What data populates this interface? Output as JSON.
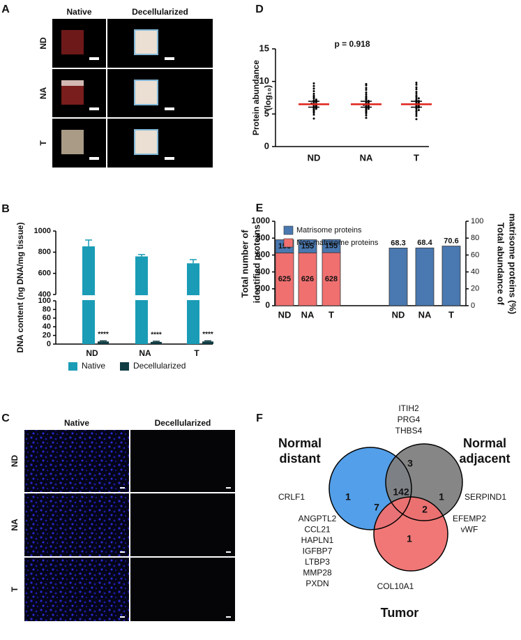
{
  "panel_labels": [
    "A",
    "B",
    "C",
    "D",
    "E",
    "F"
  ],
  "panel_a": {
    "columns": [
      "Native",
      "Decellularized"
    ],
    "rows": [
      "ND",
      "NA",
      "T"
    ]
  },
  "panel_c": {
    "columns": [
      "Native",
      "Decellularized"
    ],
    "rows": [
      "ND",
      "NA",
      "T"
    ]
  },
  "chart_data": [
    {
      "type": "broken_bar",
      "y_label": "DNA content (ng DNA/mg tissue)",
      "categories": [
        "ND",
        "NA",
        "T"
      ],
      "series": [
        {
          "name": "Native",
          "color": "#1a9cb6",
          "values": [
            855,
            760,
            695
          ],
          "errors": [
            60,
            18,
            35
          ]
        },
        {
          "name": "Decellularized",
          "color": "#103c44",
          "values": [
            6,
            5,
            6
          ],
          "errors": [
            1.5,
            1.5,
            1.5
          ]
        }
      ],
      "annotations": [
        "****",
        "****",
        "****"
      ],
      "ylim": [
        0,
        1000
      ],
      "ybreak": [
        100,
        400
      ],
      "yticks": [
        0,
        20,
        40,
        60,
        80,
        100,
        400,
        600,
        800,
        1000
      ],
      "legend": "bottom"
    },
    {
      "type": "dot_plot",
      "y_label_lines": [
        "Protein abundance",
        "(log₁₀)"
      ],
      "annotation": "p = 0.918",
      "categories": [
        "ND",
        "NA",
        "T"
      ],
      "color": "#000000",
      "mean_color": "#e0201b",
      "groups": [
        {
          "values": [
            4.3,
            4.9,
            5.2,
            5.4,
            5.6,
            5.7,
            5.8,
            5.9,
            6.0,
            6.1,
            6.2,
            6.3,
            6.4,
            6.5,
            6.5,
            6.6,
            6.7,
            6.8,
            6.9,
            7.0,
            7.1,
            7.2,
            7.4,
            7.6,
            7.8,
            8.1,
            8.5,
            8.9,
            9.3,
            9.7
          ],
          "mean": 6.5,
          "sd": 0.45
        },
        {
          "values": [
            4.4,
            4.8,
            5.1,
            5.3,
            5.5,
            5.7,
            5.8,
            5.9,
            6.0,
            6.1,
            6.2,
            6.3,
            6.4,
            6.4,
            6.5,
            6.6,
            6.7,
            6.8,
            6.9,
            7.0,
            7.2,
            7.3,
            7.5,
            7.7,
            8.0,
            8.3,
            8.7,
            9.0,
            9.4,
            9.6
          ],
          "mean": 6.5,
          "sd": 0.45
        },
        {
          "values": [
            4.2,
            4.7,
            5.0,
            5.3,
            5.5,
            5.6,
            5.8,
            5.9,
            6.0,
            6.1,
            6.2,
            6.3,
            6.4,
            6.5,
            6.6,
            6.7,
            6.8,
            6.9,
            7.0,
            7.1,
            7.3,
            7.4,
            7.6,
            7.8,
            8.1,
            8.4,
            8.8,
            9.1,
            9.5,
            9.8
          ],
          "mean": 6.5,
          "sd": 0.45
        }
      ],
      "ylim": [
        0,
        15
      ],
      "yticks": [
        0,
        5,
        10,
        15
      ]
    },
    {
      "type": "stacked_bar",
      "y_label_lines": [
        "Total number of",
        "identified proteins"
      ],
      "y2_label_lines": [
        "Total abundance of",
        "matrisome proteins (%)"
      ],
      "categories": [
        "ND",
        "NA",
        "T",
        "ND",
        "NA",
        "T"
      ],
      "series": [
        {
          "name": "Matrisome proteins",
          "color": "#4a78b0",
          "values": [
            156,
            155,
            155,
            null,
            null,
            null
          ]
        },
        {
          "name": "Non-matrisome proteins",
          "color": "#f07070",
          "values": [
            625,
            626,
            628,
            null,
            null,
            null
          ]
        },
        {
          "axis": "y2",
          "color": "#4a78b0",
          "values": [
            null,
            null,
            null,
            68.3,
            68.4,
            70.6
          ]
        }
      ],
      "ylim": [
        0,
        1000
      ],
      "yticks": [
        0,
        200,
        400,
        600,
        800,
        1000
      ],
      "y2lim": [
        0,
        100
      ],
      "y2ticks": [
        0,
        20,
        40,
        60,
        80,
        100
      ],
      "legend": "top-left"
    }
  ],
  "venn": {
    "sets": [
      {
        "name_lines": [
          "Normal",
          "distant"
        ],
        "color": "#4a9ae8"
      },
      {
        "name_lines": [
          "Normal",
          "adjacent"
        ],
        "color": "#808080"
      },
      {
        "name_lines": [
          "Tumor"
        ],
        "color": "#f07070"
      }
    ],
    "regions": [
      {
        "count": 1,
        "genes": [
          "CRLF1"
        ]
      },
      {
        "count": 3,
        "genes": [
          "ITIH2",
          "PRG4",
          "THBS4"
        ]
      },
      {
        "count": 1,
        "genes": [
          "SERPIND1"
        ]
      },
      {
        "count": 142
      },
      {
        "count": 7,
        "genes": [
          "ANGPTL2",
          "CCL21",
          "HAPLN1",
          "IGFBP7",
          "LTBP3",
          "MMP28",
          "PXDN"
        ]
      },
      {
        "count": 2,
        "genes": [
          "EFEMP2",
          "vWF"
        ]
      },
      {
        "count": 1,
        "genes": [
          "COL10A1"
        ]
      }
    ]
  }
}
